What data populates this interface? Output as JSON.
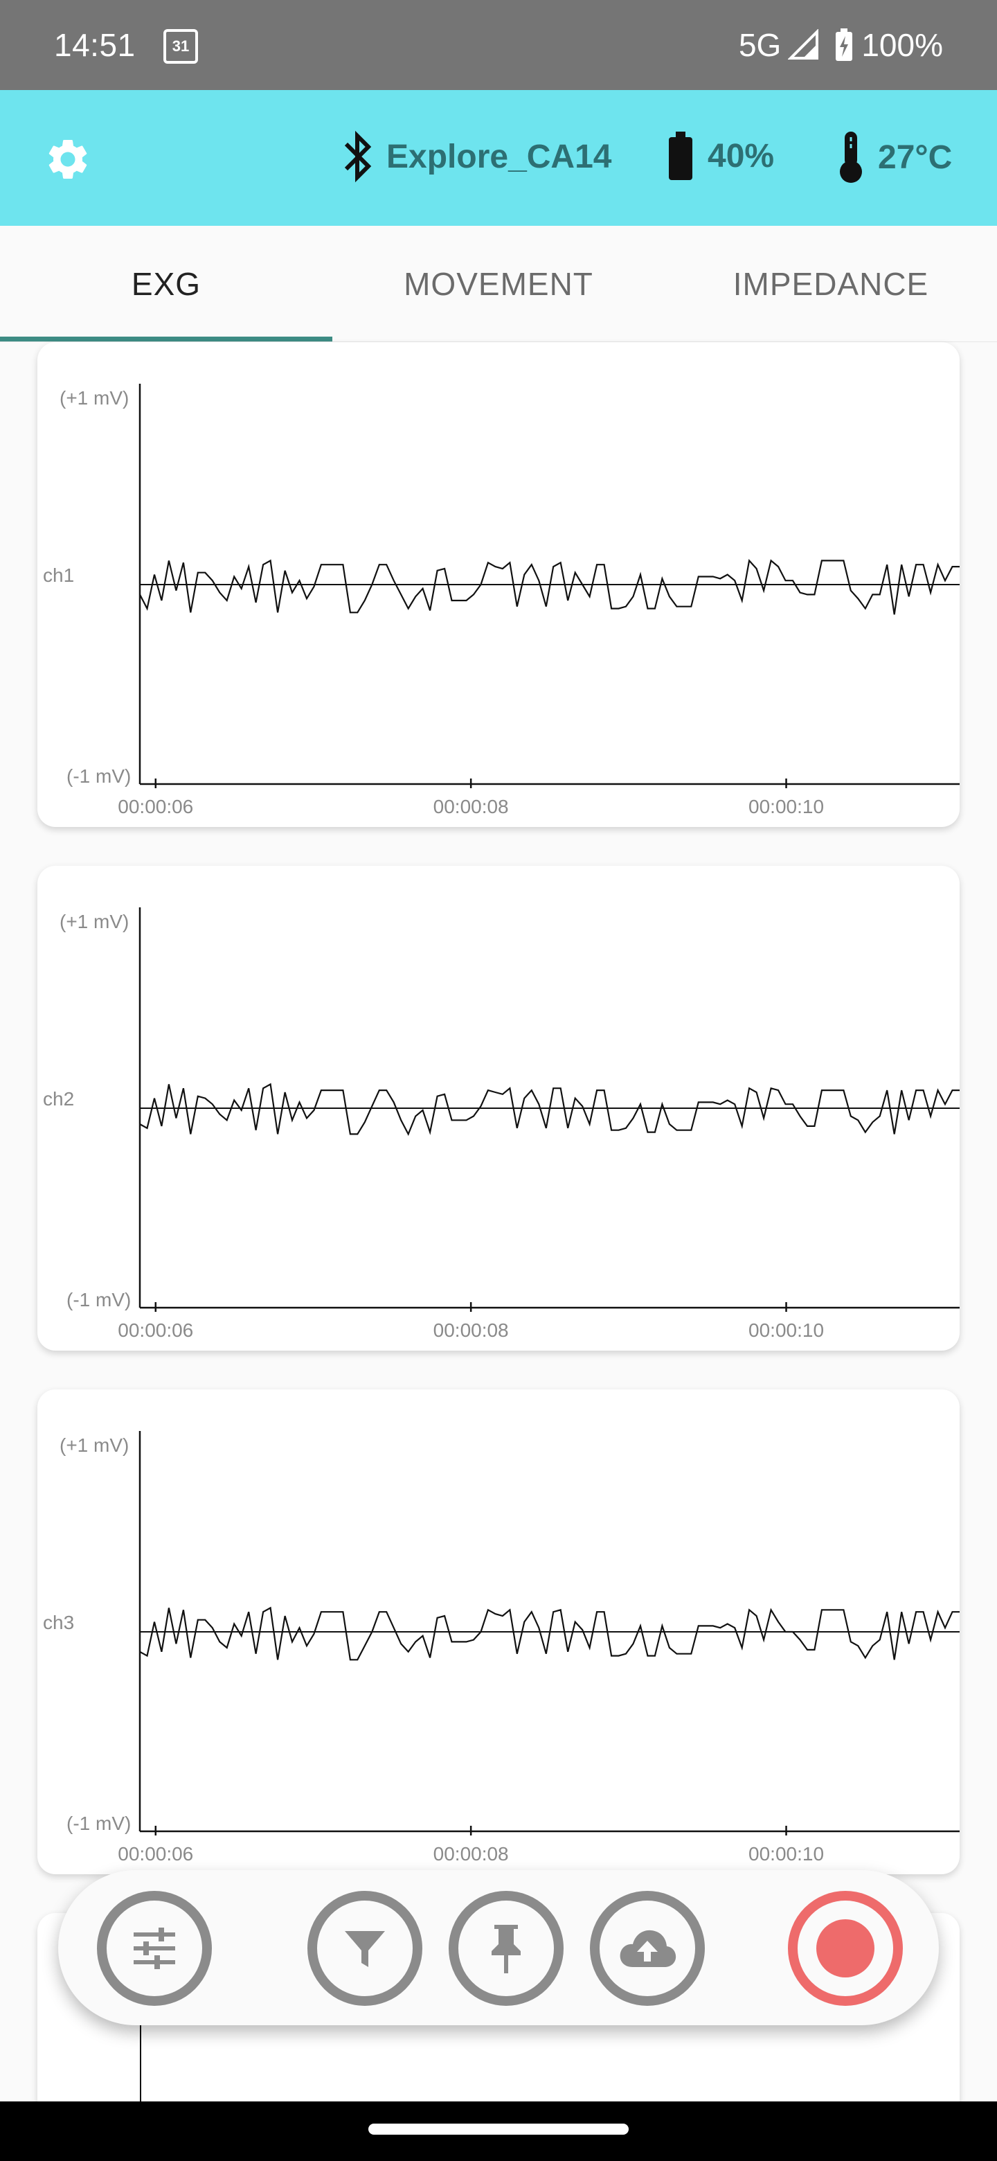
{
  "status_bar": {
    "time": "14:51",
    "calendar_day": "31",
    "network": "5G",
    "battery": "100%"
  },
  "toolbar": {
    "device_name": "Explore_CA14",
    "battery": "40%",
    "temperature": "27°C",
    "accent_color": "#6ee4ee"
  },
  "tabs": [
    {
      "label": "EXG",
      "active": true
    },
    {
      "label": "MOVEMENT",
      "active": false
    },
    {
      "label": "IMPEDANCE",
      "active": false
    }
  ],
  "chart_data": [
    {
      "type": "line",
      "title": "",
      "ylabel": "ch1",
      "y_top_label": "(+1 mV)",
      "y_bottom_label": "(-1 mV)",
      "ylim": [
        -1,
        1
      ],
      "x_ticks": [
        "00:00:06",
        "00:00:08",
        "00:00:10"
      ],
      "x_tick_seconds": [
        6,
        8,
        10
      ],
      "xlim": [
        5.9,
        11.1
      ],
      "values": [
        -0.05,
        -0.12,
        0.05,
        -0.08,
        0.12,
        -0.03,
        0.11,
        -0.14,
        0.06,
        0.06,
        0.02,
        -0.04,
        -0.08,
        0.04,
        -0.02,
        0.09,
        -0.09,
        0.1,
        0.12,
        -0.14,
        0.07,
        -0.04,
        0.02,
        -0.07,
        -0.01,
        0.1,
        0.1,
        0.1,
        0.1,
        -0.14,
        -0.14,
        -0.08,
        0.0,
        0.1,
        0.1,
        0.02,
        -0.05,
        -0.12,
        -0.06,
        -0.02,
        -0.13,
        0.07,
        0.08,
        -0.08,
        -0.08,
        -0.08,
        -0.05,
        0.0,
        0.11,
        0.09,
        0.08,
        0.11,
        -0.11,
        0.05,
        0.1,
        0.02,
        -0.11,
        0.09,
        0.11,
        -0.08,
        0.06,
        0.0,
        -0.06,
        0.1,
        0.1,
        -0.12,
        -0.12,
        -0.11,
        -0.06,
        0.05,
        -0.12,
        -0.12,
        0.03,
        -0.06,
        -0.11,
        -0.11,
        -0.11,
        0.04,
        0.04,
        0.04,
        0.03,
        0.05,
        0.02,
        -0.08,
        0.12,
        0.08,
        -0.03,
        0.12,
        0.09,
        0.02,
        0.02,
        -0.04,
        -0.05,
        -0.05,
        0.12,
        0.12,
        0.12,
        0.12,
        -0.03,
        -0.07,
        -0.12,
        -0.05,
        -0.05,
        0.1,
        -0.15,
        0.1,
        -0.06,
        0.1,
        0.1,
        -0.04,
        0.1,
        0.02,
        0.09,
        0.09
      ],
      "grid": false
    },
    {
      "type": "line",
      "title": "",
      "ylabel": "ch2",
      "y_top_label": "(+1 mV)",
      "y_bottom_label": "(-1 mV)",
      "ylim": [
        -1,
        1
      ],
      "x_ticks": [
        "00:00:06",
        "00:00:08",
        "00:00:10"
      ],
      "x_tick_seconds": [
        6,
        8,
        10
      ],
      "xlim": [
        5.9,
        11.1
      ],
      "values": [
        -0.08,
        -0.1,
        0.05,
        -0.09,
        0.12,
        -0.05,
        0.1,
        -0.13,
        0.06,
        0.05,
        0.02,
        -0.03,
        -0.06,
        0.04,
        -0.01,
        0.1,
        -0.11,
        0.1,
        0.12,
        -0.13,
        0.08,
        -0.06,
        0.03,
        -0.05,
        -0.01,
        0.09,
        0.09,
        0.09,
        0.09,
        -0.13,
        -0.13,
        -0.07,
        0.01,
        0.09,
        0.09,
        0.03,
        -0.06,
        -0.13,
        -0.04,
        -0.01,
        -0.12,
        0.06,
        0.07,
        -0.06,
        -0.06,
        -0.06,
        -0.04,
        0.01,
        0.09,
        0.08,
        0.07,
        0.1,
        -0.1,
        0.05,
        0.09,
        0.02,
        -0.1,
        0.1,
        0.1,
        -0.1,
        0.05,
        0.01,
        -0.08,
        0.09,
        0.09,
        -0.11,
        -0.11,
        -0.1,
        -0.05,
        0.02,
        -0.12,
        -0.12,
        0.02,
        -0.08,
        -0.11,
        -0.11,
        -0.11,
        0.03,
        0.03,
        0.03,
        0.02,
        0.04,
        0.02,
        -0.09,
        0.1,
        0.08,
        -0.05,
        0.1,
        0.09,
        0.02,
        0.02,
        -0.04,
        -0.09,
        -0.09,
        0.09,
        0.09,
        0.09,
        0.09,
        -0.04,
        -0.06,
        -0.12,
        -0.07,
        -0.04,
        0.09,
        -0.13,
        0.09,
        -0.06,
        0.09,
        0.09,
        -0.04,
        0.09,
        0.02,
        0.09,
        0.09
      ],
      "grid": false
    },
    {
      "type": "line",
      "title": "",
      "ylabel": "ch3",
      "y_top_label": "(+1 mV)",
      "y_bottom_label": "(-1 mV)",
      "ylim": [
        -1,
        1
      ],
      "x_ticks": [
        "00:00:06",
        "00:00:08",
        "00:00:10"
      ],
      "x_tick_seconds": [
        6,
        8,
        10
      ],
      "xlim": [
        5.9,
        11.1
      ],
      "values": [
        -0.1,
        -0.12,
        0.05,
        -0.1,
        0.12,
        -0.06,
        0.11,
        -0.13,
        0.06,
        0.06,
        0.02,
        -0.05,
        -0.08,
        0.04,
        -0.02,
        0.1,
        -0.11,
        0.1,
        0.12,
        -0.14,
        0.08,
        -0.05,
        0.02,
        -0.07,
        -0.01,
        0.1,
        0.1,
        0.1,
        0.1,
        -0.14,
        -0.14,
        -0.07,
        0.0,
        0.1,
        0.1,
        0.02,
        -0.06,
        -0.1,
        -0.05,
        -0.02,
        -0.13,
        0.07,
        0.08,
        -0.05,
        -0.05,
        -0.05,
        -0.04,
        0.0,
        0.11,
        0.09,
        0.08,
        0.11,
        -0.11,
        0.05,
        0.1,
        0.02,
        -0.11,
        0.1,
        0.11,
        -0.1,
        0.05,
        0.01,
        -0.08,
        0.1,
        0.1,
        -0.12,
        -0.12,
        -0.11,
        -0.06,
        0.03,
        -0.12,
        -0.12,
        0.03,
        -0.08,
        -0.11,
        -0.11,
        -0.11,
        0.03,
        0.03,
        0.03,
        0.02,
        0.04,
        0.02,
        -0.08,
        0.11,
        0.08,
        -0.04,
        0.11,
        0.05,
        0.0,
        0.0,
        -0.04,
        -0.09,
        -0.09,
        0.11,
        0.11,
        0.11,
        0.11,
        -0.05,
        -0.07,
        -0.13,
        -0.07,
        -0.04,
        0.1,
        -0.14,
        0.1,
        -0.06,
        0.1,
        0.1,
        -0.04,
        0.1,
        0.02,
        0.1,
        0.1
      ],
      "grid": false
    }
  ],
  "action_bar": {
    "buttons": [
      "settings-sliders",
      "filter",
      "pin-marker",
      "cloud-upload",
      "record"
    ],
    "record_color": "#ee6b6b"
  }
}
